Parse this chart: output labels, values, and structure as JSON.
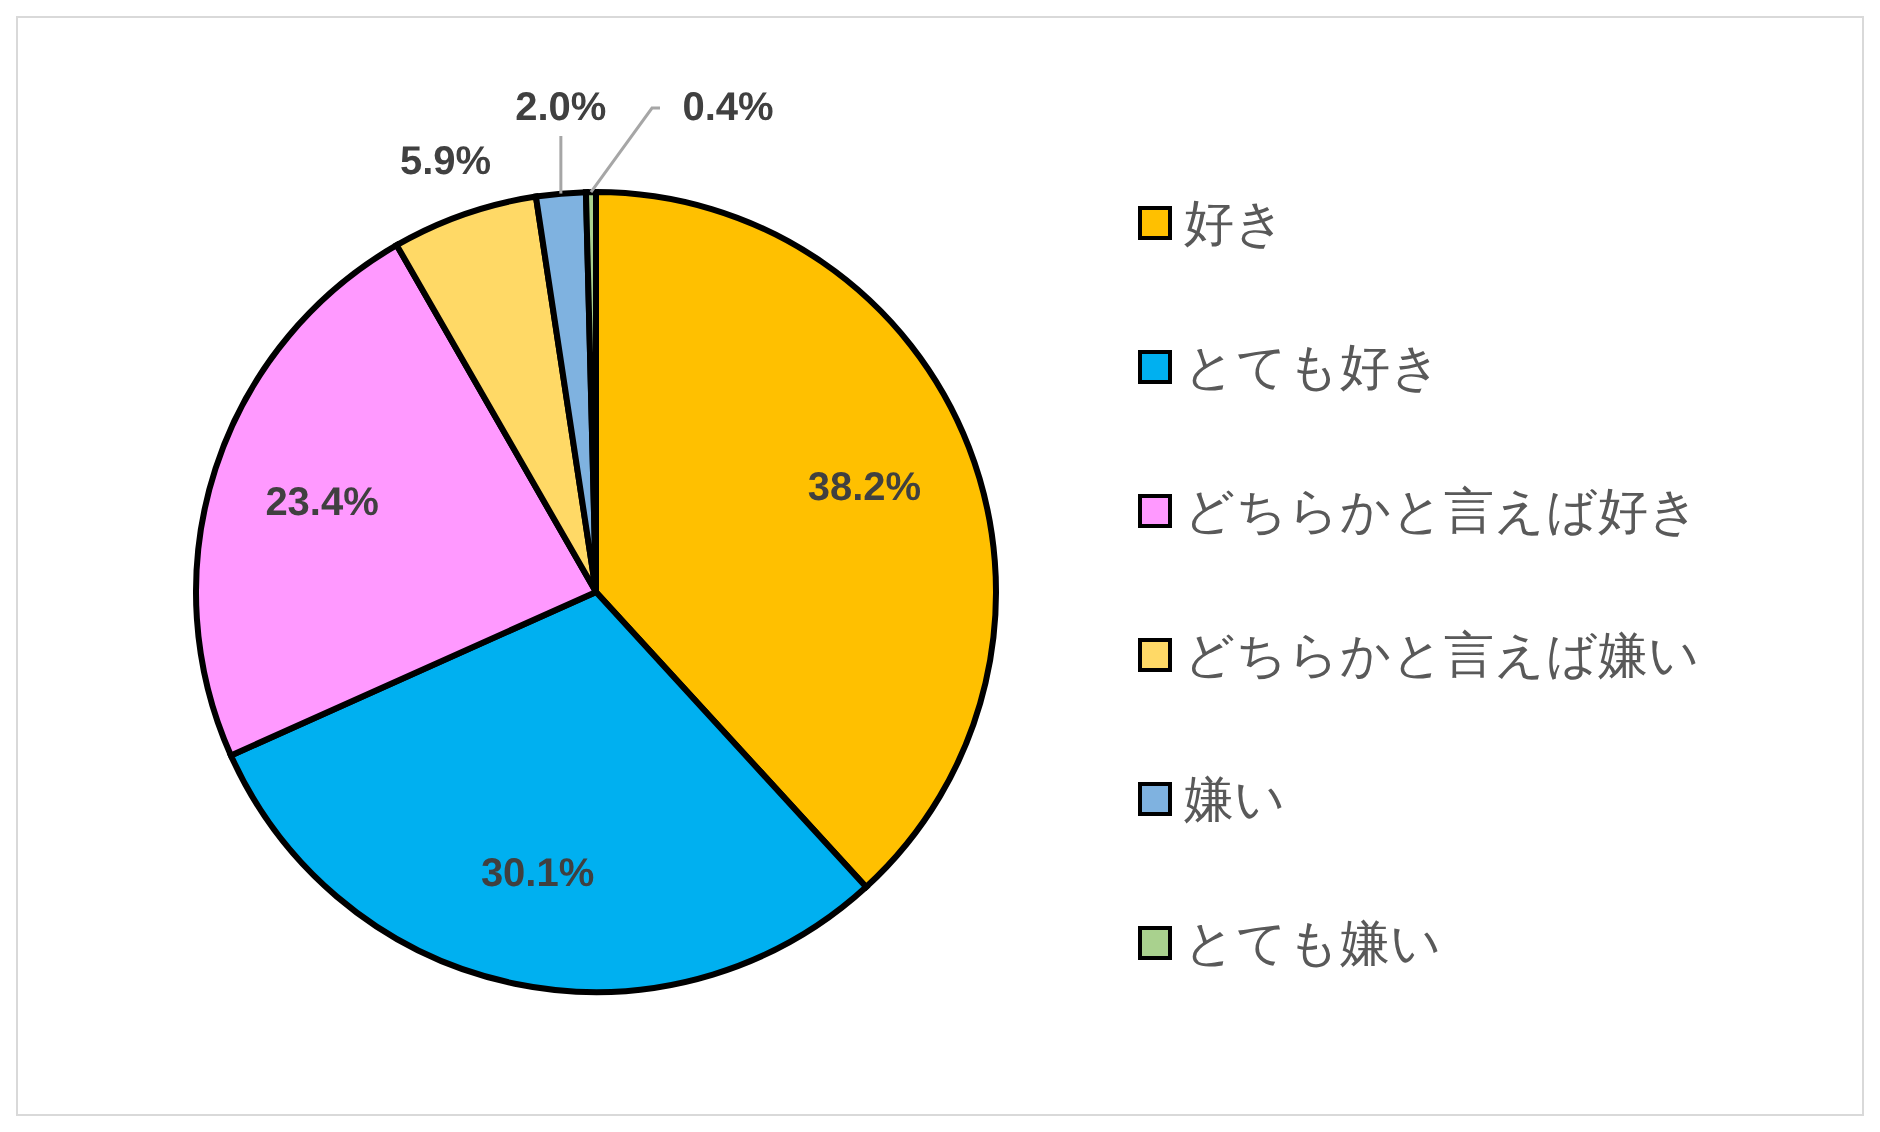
{
  "chart_data": {
    "type": "pie",
    "categories": [
      "好き",
      "とても好き",
      "どちらかと言えば好き",
      "どちらかと言えば嫌い",
      "嫌い",
      "とても嫌い"
    ],
    "values": [
      38.2,
      30.1,
      23.4,
      5.9,
      2.0,
      0.4
    ],
    "colors": [
      "#ffc000",
      "#00b0f0",
      "#ff99ff",
      "#ffd966",
      "#7fb2e0",
      "#a9d18e"
    ],
    "value_labels": [
      "38.2%",
      "30.1%",
      "23.4%",
      "5.9%",
      "2.0%",
      "0.4%"
    ],
    "legend": "right"
  }
}
